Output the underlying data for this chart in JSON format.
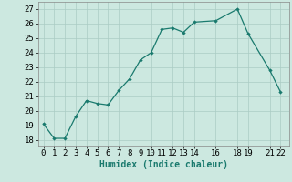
{
  "x": [
    0,
    1,
    2,
    3,
    4,
    5,
    6,
    7,
    8,
    9,
    10,
    11,
    12,
    13,
    14,
    16,
    18,
    19,
    21,
    22
  ],
  "y": [
    19.1,
    18.1,
    18.1,
    19.6,
    20.7,
    20.5,
    20.4,
    21.4,
    22.2,
    23.5,
    24.0,
    25.6,
    25.7,
    25.4,
    26.1,
    26.2,
    27.0,
    25.3,
    22.8,
    21.3
  ],
  "xlabel": "Humidex (Indice chaleur)",
  "xticks": [
    0,
    1,
    2,
    3,
    4,
    5,
    6,
    7,
    8,
    9,
    10,
    11,
    12,
    13,
    14,
    16,
    18,
    19,
    21,
    22
  ],
  "yticks": [
    18,
    19,
    20,
    21,
    22,
    23,
    24,
    25,
    26,
    27
  ],
  "ylim": [
    17.6,
    27.5
  ],
  "xlim": [
    -0.5,
    22.8
  ],
  "line_color": "#1a7a6e",
  "marker": "D",
  "marker_size": 2.2,
  "bg_color": "#cce8e0",
  "grid_color": "#aaccc4",
  "label_fontsize": 7,
  "tick_fontsize": 6.5
}
